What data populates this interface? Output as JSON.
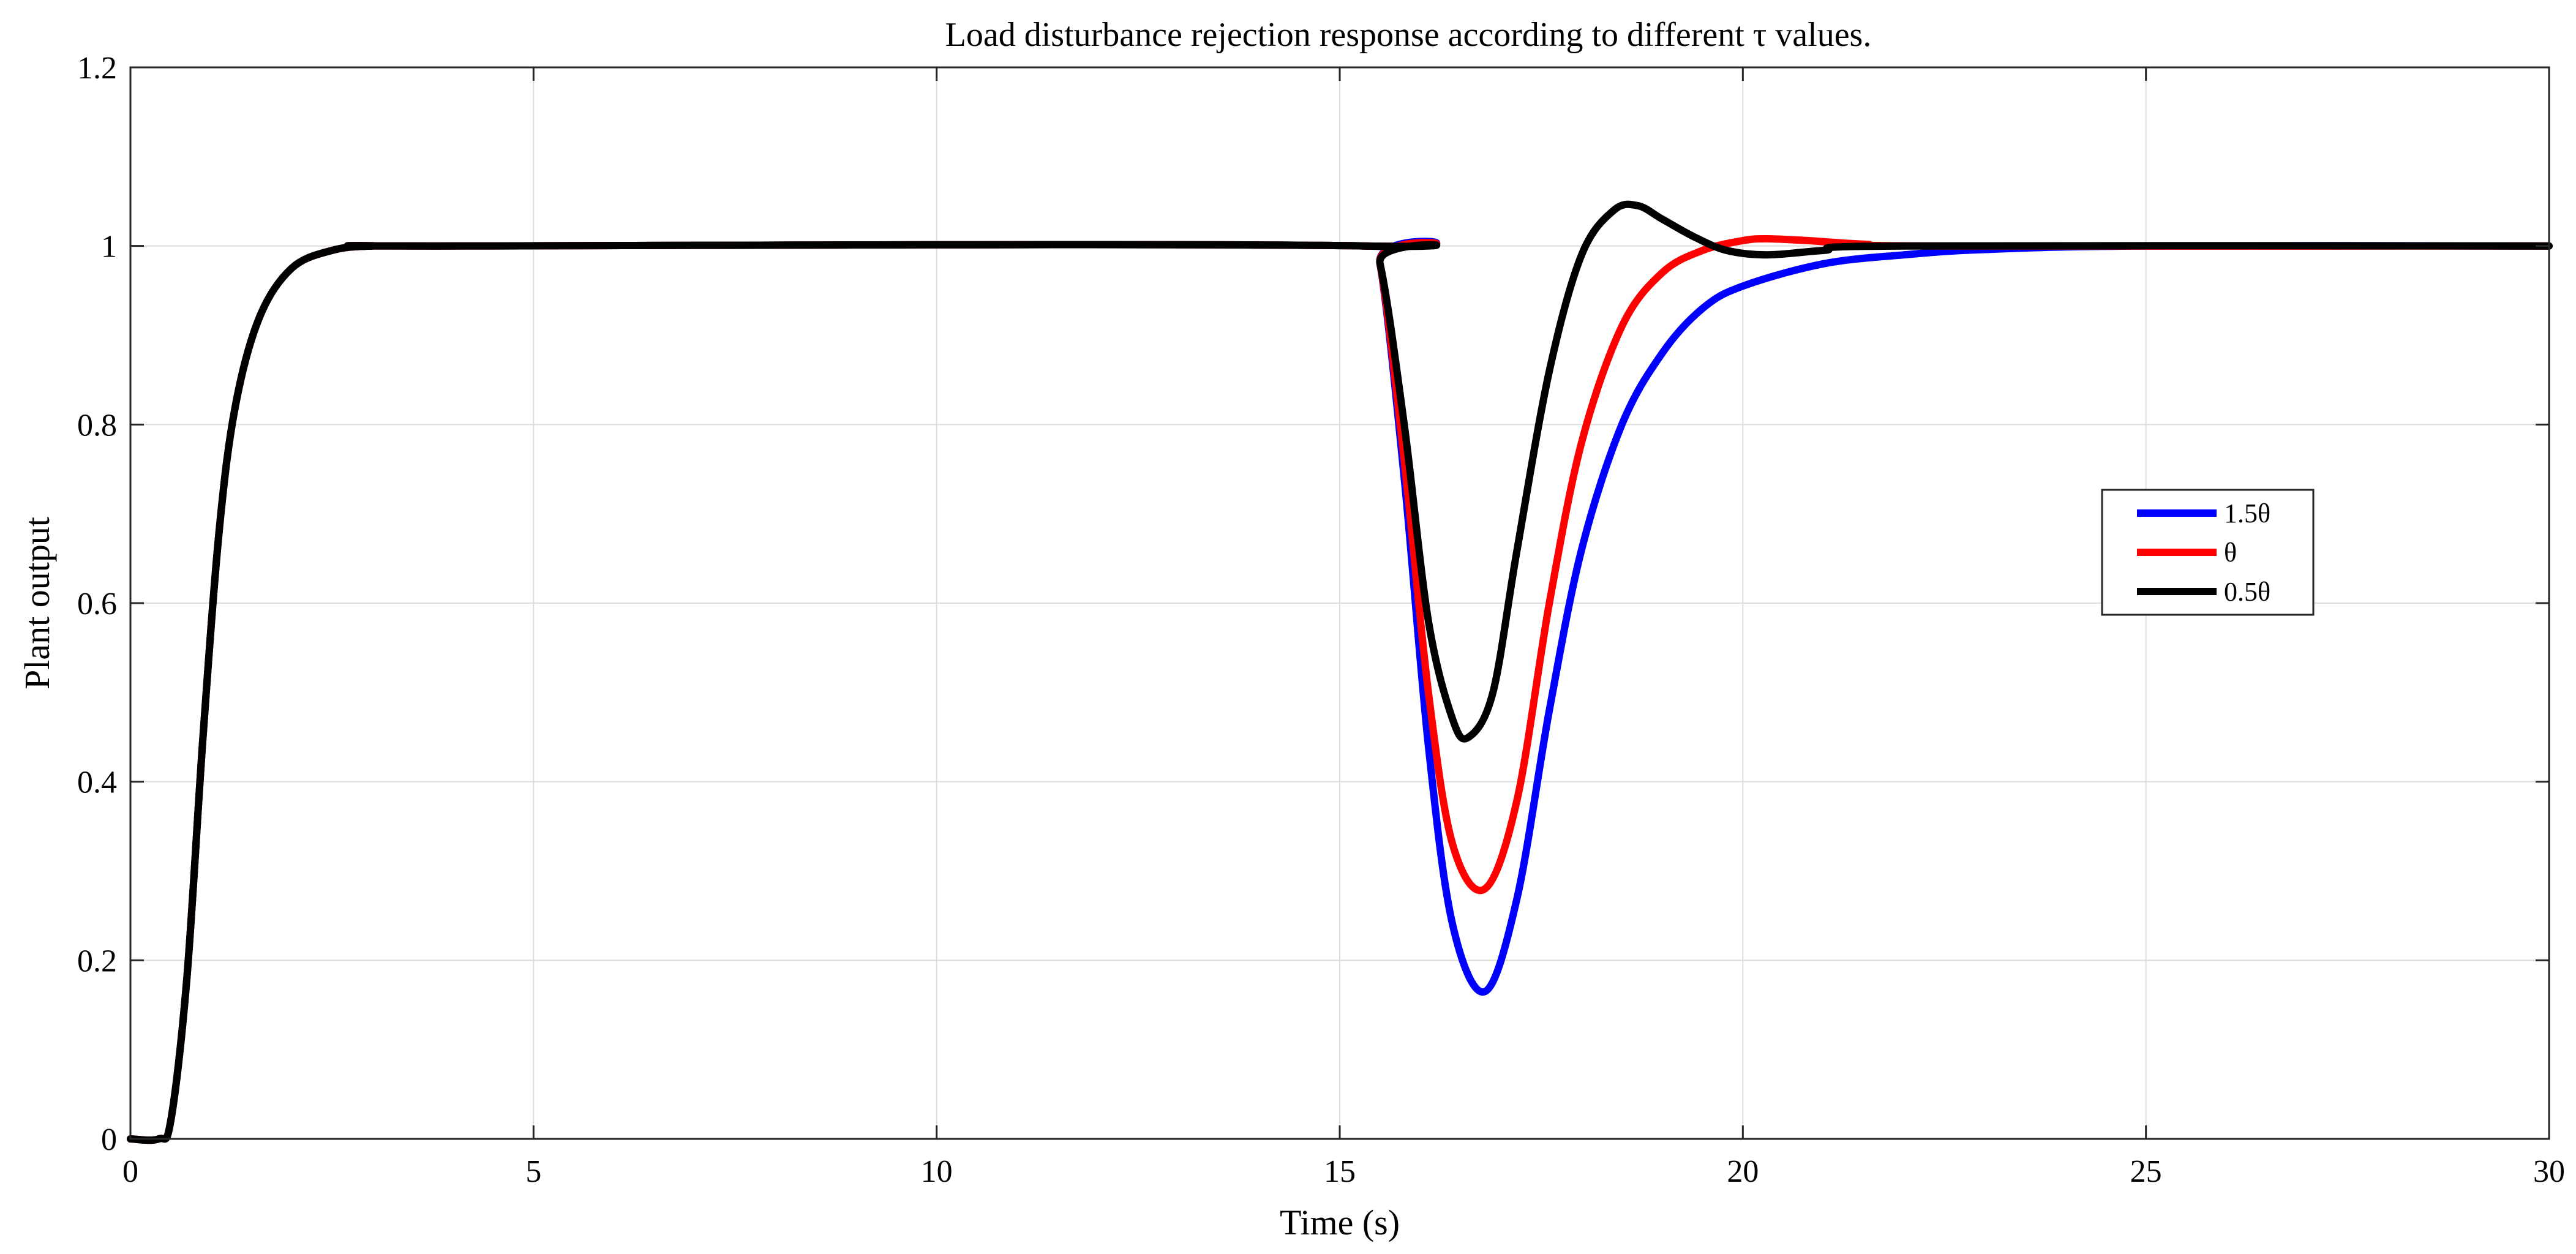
{
  "chart_data": {
    "type": "line",
    "title": "Load disturbance rejection response according to different τ values.",
    "xlabel": "Time (s)",
    "ylabel": "Plant output",
    "xlim": [
      0,
      30
    ],
    "ylim": [
      0,
      1.2
    ],
    "xticks": [
      0,
      5,
      10,
      15,
      20,
      25,
      30
    ],
    "xtick_labels": [
      "0",
      "5",
      "10",
      "15",
      "20",
      "25",
      "30"
    ],
    "yticks": [
      0,
      0.2,
      0.4,
      0.6,
      0.8,
      1,
      1.2
    ],
    "ytick_labels": [
      "0",
      "0.2",
      "0.4",
      "0.6",
      "0.8",
      "1",
      "1.2"
    ],
    "grid": true,
    "legend_position": "right",
    "series": [
      {
        "name": "1.5θ",
        "color": "#0000ff",
        "x": [
          0,
          0.35,
          0.5,
          0.7,
          0.9,
          1.1,
          1.3,
          1.6,
          2.0,
          2.5,
          3.0,
          3.8,
          15.3,
          15.5,
          15.8,
          16.1,
          16.4,
          16.8,
          17.2,
          17.6,
          18.0,
          18.5,
          19.0,
          19.5,
          20.0,
          21.0,
          22.0,
          23.0,
          25.0,
          30.0
        ],
        "y": [
          0,
          0,
          0.02,
          0.18,
          0.45,
          0.68,
          0.82,
          0.92,
          0.975,
          0.995,
          1.0,
          1.0,
          1.0,
          0.98,
          0.74,
          0.44,
          0.24,
          0.165,
          0.27,
          0.48,
          0.66,
          0.8,
          0.88,
          0.93,
          0.955,
          0.98,
          0.99,
          0.996,
          1.0,
          1.0
        ]
      },
      {
        "name": "θ",
        "color": "#ff0000",
        "x": [
          0,
          0.35,
          0.5,
          0.7,
          0.9,
          1.1,
          1.3,
          1.6,
          2.0,
          2.5,
          3.0,
          3.8,
          15.3,
          15.5,
          15.8,
          16.1,
          16.4,
          16.8,
          17.2,
          17.6,
          18.0,
          18.5,
          19.0,
          19.5,
          20.0,
          20.3,
          20.8,
          21.5,
          22.5,
          30.0
        ],
        "y": [
          0,
          0,
          0.02,
          0.18,
          0.45,
          0.68,
          0.82,
          0.92,
          0.975,
          0.995,
          1.0,
          1.0,
          1.0,
          0.98,
          0.76,
          0.5,
          0.33,
          0.28,
          0.38,
          0.6,
          0.78,
          0.91,
          0.97,
          0.995,
          1.006,
          1.008,
          1.006,
          1.002,
          1.0,
          1.0
        ]
      },
      {
        "name": "0.5θ",
        "color": "#000000",
        "x": [
          0,
          0.35,
          0.5,
          0.7,
          0.9,
          1.1,
          1.3,
          1.6,
          2.0,
          2.5,
          3.0,
          3.8,
          15.3,
          15.5,
          15.8,
          16.1,
          16.4,
          16.6,
          16.9,
          17.2,
          17.6,
          18.0,
          18.4,
          18.7,
          19.0,
          19.4,
          19.8,
          20.3,
          21.0,
          22.0,
          30.0
        ],
        "y": [
          0,
          0,
          0.02,
          0.18,
          0.45,
          0.68,
          0.82,
          0.92,
          0.975,
          0.995,
          1.0,
          1.0,
          1.0,
          0.98,
          0.8,
          0.58,
          0.47,
          0.45,
          0.5,
          0.66,
          0.86,
          0.99,
          1.04,
          1.045,
          1.03,
          1.01,
          0.995,
          0.99,
          0.995,
          1.0,
          1.0
        ]
      }
    ]
  }
}
